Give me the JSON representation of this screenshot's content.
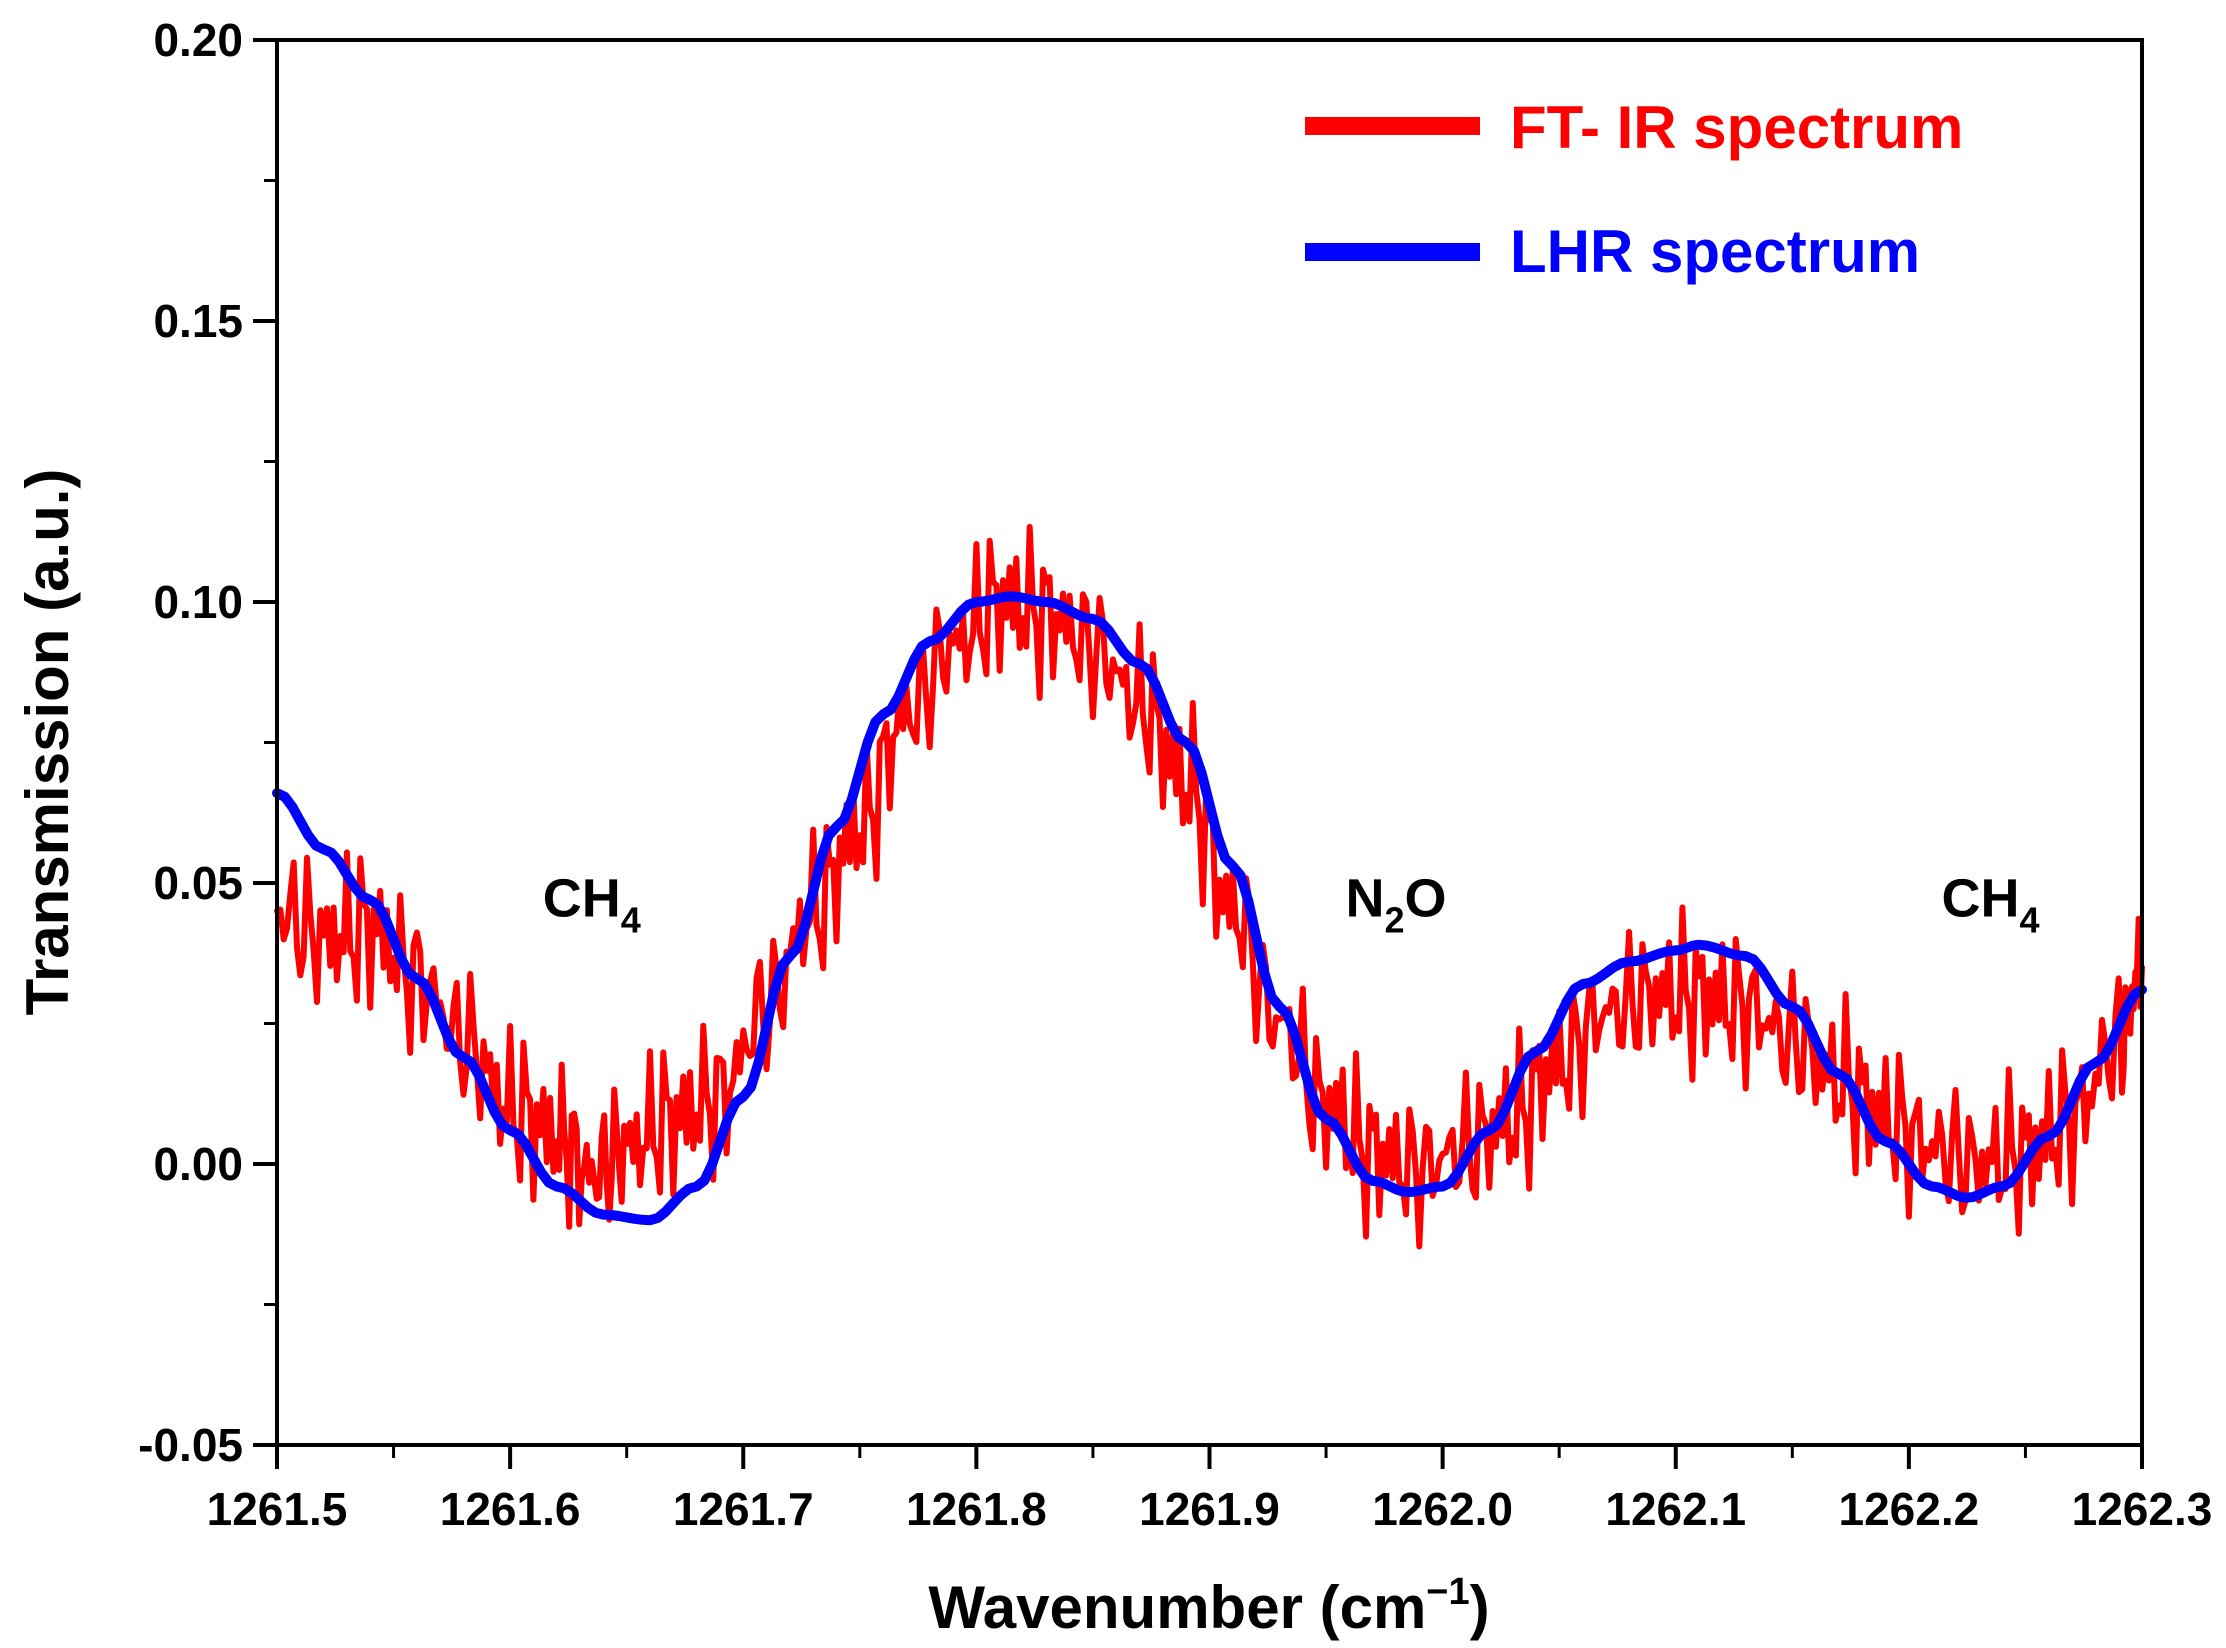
{
  "chart_data": {
    "type": "line",
    "title": "",
    "xlabel": "Wavenumber (cm",
    "xlabel_sup": "−1",
    "xlabel_close": ")",
    "ylabel": "Transmission (a.u.)",
    "xlim": [
      1261.5,
      1262.3
    ],
    "ylim": [
      -0.05,
      0.2
    ],
    "x_ticks": [
      1261.5,
      1261.6,
      1261.7,
      1261.8,
      1261.9,
      1262.0,
      1262.1,
      1262.2,
      1262.3
    ],
    "x_tick_labels": [
      "1261.5",
      "1261.6",
      "1261.7",
      "1261.8",
      "1261.9",
      "1262.0",
      "1262.1",
      "1262.2",
      "1262.3"
    ],
    "y_ticks": [
      -0.05,
      0.0,
      0.05,
      0.1,
      0.15,
      0.2
    ],
    "y_tick_labels": [
      "-0.05",
      "0.00",
      "0.05",
      "0.10",
      "0.15",
      "0.20"
    ],
    "grid": false,
    "legend_position": "top-right",
    "series": [
      {
        "name": "FT- IR spectrum",
        "color": "#ff0000",
        "x": [
          1261.5,
          1261.52,
          1261.54,
          1261.56,
          1261.58,
          1261.6,
          1261.62,
          1261.635,
          1261.65,
          1261.67,
          1261.69,
          1261.71,
          1261.73,
          1261.75,
          1261.77,
          1261.79,
          1261.81,
          1261.83,
          1261.85,
          1261.87,
          1261.89,
          1261.91,
          1261.93,
          1261.95,
          1261.97,
          1261.99,
          1262.01,
          1262.03,
          1262.05,
          1262.07,
          1262.09,
          1262.11,
          1262.13,
          1262.15,
          1262.17,
          1262.19,
          1262.21,
          1262.23,
          1262.25,
          1262.27,
          1262.29,
          1262.3
        ],
        "values": [
          0.045,
          0.04,
          0.042,
          0.033,
          0.022,
          0.01,
          0.005,
          -0.002,
          0.003,
          0.008,
          0.012,
          0.028,
          0.045,
          0.06,
          0.08,
          0.092,
          0.1,
          0.098,
          0.092,
          0.082,
          0.068,
          0.045,
          0.025,
          0.01,
          0.002,
          -0.001,
          0.003,
          0.008,
          0.018,
          0.027,
          0.03,
          0.03,
          0.028,
          0.022,
          0.015,
          0.008,
          0.003,
          0.0,
          0.002,
          0.008,
          0.022,
          0.035
        ]
      },
      {
        "name": "LHR spectrum",
        "color": "#0000ff",
        "x": [
          1261.5,
          1261.52,
          1261.54,
          1261.56,
          1261.58,
          1261.6,
          1261.62,
          1261.64,
          1261.66,
          1261.68,
          1261.7,
          1261.72,
          1261.74,
          1261.76,
          1261.78,
          1261.8,
          1261.815,
          1261.83,
          1261.85,
          1261.87,
          1261.89,
          1261.91,
          1261.93,
          1261.95,
          1261.97,
          1261.985,
          1262.0,
          1262.02,
          1262.04,
          1262.06,
          1262.08,
          1262.1,
          1262.11,
          1262.13,
          1262.15,
          1262.17,
          1262.19,
          1262.21,
          1262.225,
          1262.24,
          1262.26,
          1262.28,
          1262.3
        ],
        "values": [
          0.066,
          0.056,
          0.047,
          0.033,
          0.019,
          0.006,
          -0.004,
          -0.009,
          -0.01,
          -0.004,
          0.012,
          0.037,
          0.06,
          0.08,
          0.093,
          0.1,
          0.101,
          0.1,
          0.097,
          0.089,
          0.075,
          0.053,
          0.028,
          0.008,
          -0.003,
          -0.005,
          -0.004,
          0.006,
          0.02,
          0.032,
          0.036,
          0.038,
          0.039,
          0.037,
          0.028,
          0.016,
          0.004,
          -0.004,
          -0.006,
          -0.004,
          0.005,
          0.018,
          0.031
        ]
      }
    ],
    "annotations": [
      {
        "base": "CH",
        "sub": "4",
        "x": 1261.635,
        "y": 0.044
      },
      {
        "base": "N",
        "sub": "2",
        "rest": "O",
        "x": 1261.98,
        "y": 0.044
      },
      {
        "base": "CH",
        "sub": "4",
        "x": 1262.235,
        "y": 0.044
      }
    ]
  }
}
